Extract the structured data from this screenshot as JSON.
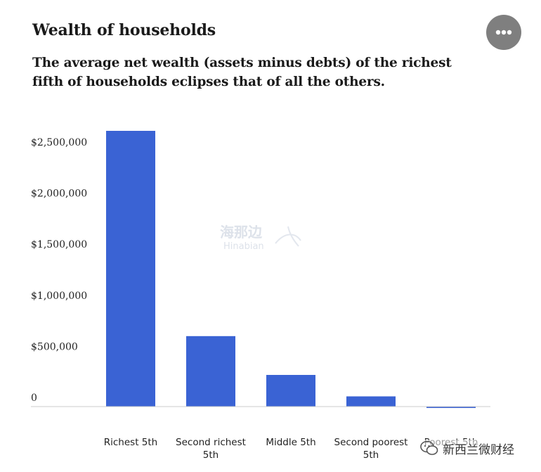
{
  "header": {
    "title": "Wealth of households",
    "subtitle": "The average net wealth (assets minus debts) of the richest fifth of households eclipses that of all the others."
  },
  "menu": {
    "icon": "more-horizontal-icon"
  },
  "chart_data": {
    "type": "bar",
    "categories": [
      "Richest 5th",
      "Second richest 5th",
      "Middle 5th",
      "Second poorest 5th",
      "Poorest 5th"
    ],
    "values": [
      2700000,
      690000,
      310000,
      100000,
      -10000
    ],
    "yticks": [
      0,
      500000,
      1000000,
      1500000,
      2000000,
      2500000
    ],
    "ytick_labels": [
      "0",
      "$500,000",
      "$1,000,000",
      "$1,500,000",
      "$2,000,000",
      "$2,500,000"
    ],
    "ylim": [
      -20000,
      2700000
    ],
    "grid": false,
    "legend": "none",
    "bar_color": "#3a63d4",
    "axis_color": "#cccccc"
  },
  "watermark": {
    "cn": "海那边",
    "en": "Hinabian"
  },
  "footer": {
    "source_badge": "新西兰微财经",
    "icon": "wechat-icon"
  }
}
